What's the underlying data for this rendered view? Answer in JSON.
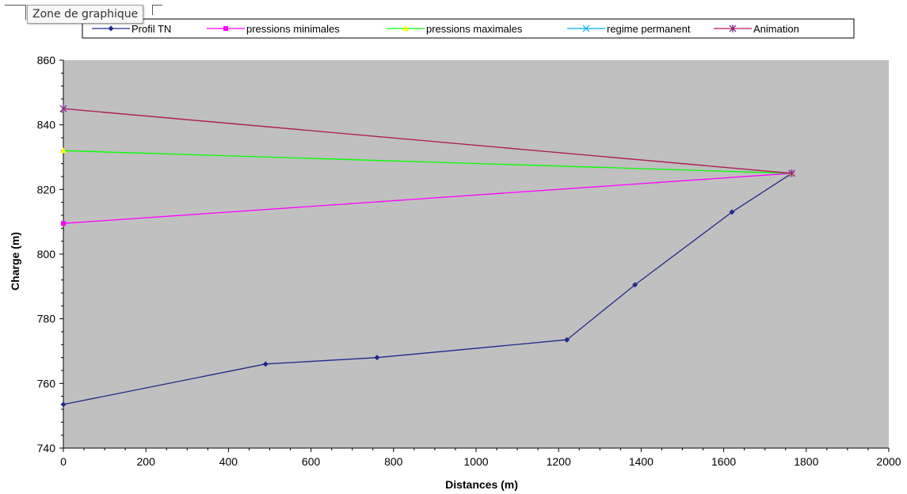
{
  "tooltip": "Zone de graphique",
  "colors": {
    "plot_bg": "#c0c0c0",
    "profil_tn": "#1f2a88",
    "pressions_min": "#ff00ff",
    "pressions_max": "#00ff00",
    "regime_permanent": "#00b0f0",
    "animation": "#c0184a"
  },
  "chart_data": {
    "type": "line",
    "xlabel": "Distances (m)",
    "ylabel": "Charge (m)",
    "xlim": [
      0,
      2000
    ],
    "ylim": [
      740,
      860
    ],
    "xticks": [
      0,
      200,
      400,
      600,
      800,
      1000,
      1200,
      1400,
      1600,
      1800,
      2000
    ],
    "yticks": [
      740,
      760,
      780,
      800,
      820,
      840,
      860
    ],
    "grid": false,
    "legend_position": "top",
    "series": [
      {
        "name": "Profil TN",
        "color": "#1f2a88",
        "marker": "diamond",
        "x": [
          0,
          490,
          760,
          1220,
          1385,
          1620,
          1765
        ],
        "y": [
          753.5,
          766,
          768,
          773.5,
          790.5,
          813,
          825
        ]
      },
      {
        "name": "pressions minimales",
        "color": "#ff00ff",
        "marker": "square",
        "x": [
          0,
          1765
        ],
        "y": [
          809.5,
          825
        ]
      },
      {
        "name": "pressions maximales",
        "color": "#00ff00",
        "marker": "triangle",
        "x": [
          0,
          1765
        ],
        "y": [
          832,
          825
        ]
      },
      {
        "name": "regime permanent",
        "color": "#00b0f0",
        "marker": "x",
        "x": [
          0,
          1765
        ],
        "y": [
          845,
          825
        ]
      },
      {
        "name": "Animation",
        "color": "#c0184a",
        "marker": "star",
        "x": [
          0,
          1765
        ],
        "y": [
          845,
          825
        ]
      }
    ]
  }
}
